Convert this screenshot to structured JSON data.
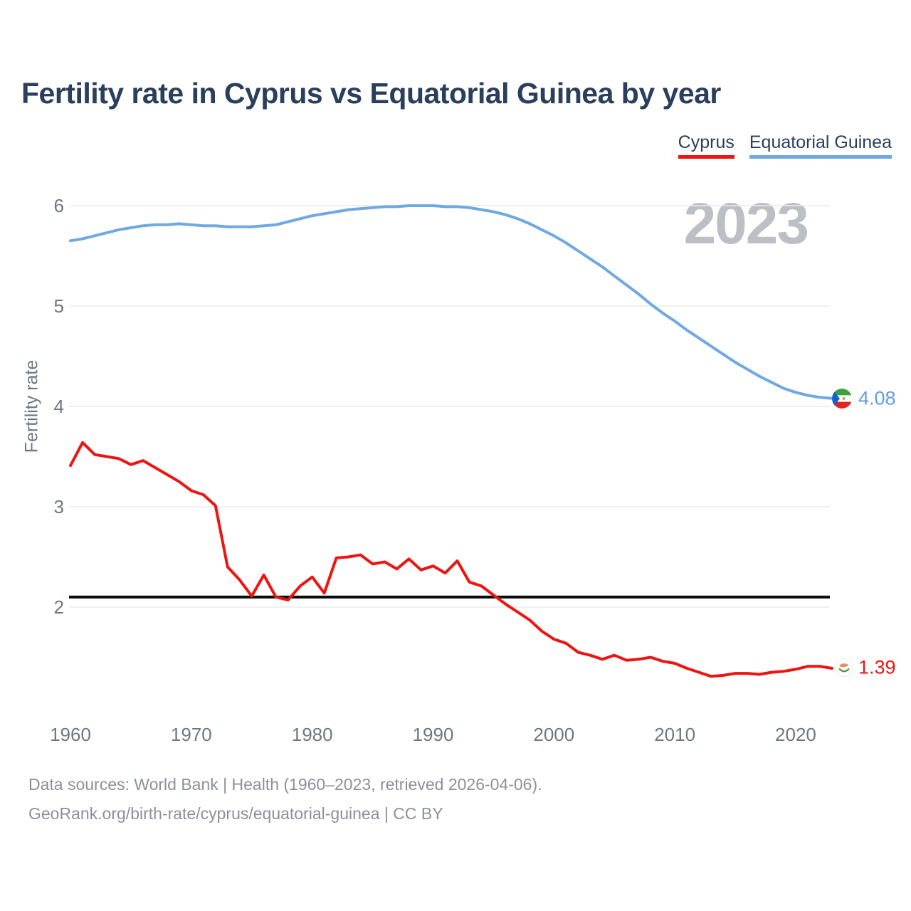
{
  "header": {
    "title": "Fertility rate in Cyprus vs Equatorial Guinea by year"
  },
  "legend": {
    "items": [
      {
        "label": "Cyprus",
        "color": "#ee1411"
      },
      {
        "label": "Equatorial Guinea",
        "color": "#70a9e2"
      }
    ]
  },
  "chart_data": {
    "type": "line",
    "title": "Fertility rate in Cyprus vs Equatorial Guinea by year",
    "xlabel": "",
    "ylabel": "Fertility rate",
    "year_label": "2023",
    "x_range": [
      1960,
      2023
    ],
    "xticks": [
      1960,
      1970,
      1980,
      1990,
      2000,
      2010,
      2020
    ],
    "yticks": [
      2,
      3,
      4,
      5,
      6
    ],
    "ylim": [
      1.2,
      6.3
    ],
    "grid": true,
    "legend_position": "top-right",
    "reference_line": 2.1,
    "series": [
      {
        "name": "Cyprus",
        "color": "#ee1411",
        "end_label": "1.39",
        "end_value": 1.39,
        "values": [
          3.41,
          3.64,
          3.52,
          3.5,
          3.48,
          3.42,
          3.46,
          3.39,
          3.32,
          3.25,
          3.16,
          3.12,
          3.01,
          2.4,
          2.27,
          2.11,
          2.32,
          2.1,
          2.07,
          2.21,
          2.3,
          2.14,
          2.49,
          2.5,
          2.52,
          2.43,
          2.45,
          2.38,
          2.48,
          2.37,
          2.41,
          2.34,
          2.46,
          2.25,
          2.21,
          2.12,
          2.03,
          1.95,
          1.87,
          1.76,
          1.68,
          1.64,
          1.55,
          1.52,
          1.48,
          1.52,
          1.47,
          1.48,
          1.5,
          1.46,
          1.44,
          1.39,
          1.35,
          1.31,
          1.32,
          1.34,
          1.34,
          1.33,
          1.35,
          1.36,
          1.38,
          1.41,
          1.41,
          1.39
        ]
      },
      {
        "name": "Equatorial Guinea",
        "color": "#70a9e2",
        "end_label": "4.08",
        "end_value": 4.08,
        "values": [
          5.65,
          5.67,
          5.7,
          5.73,
          5.76,
          5.78,
          5.8,
          5.81,
          5.81,
          5.82,
          5.81,
          5.8,
          5.8,
          5.79,
          5.79,
          5.79,
          5.8,
          5.81,
          5.84,
          5.87,
          5.9,
          5.92,
          5.94,
          5.96,
          5.97,
          5.98,
          5.99,
          5.99,
          6.0,
          6.0,
          6.0,
          5.99,
          5.99,
          5.98,
          5.96,
          5.94,
          5.91,
          5.87,
          5.82,
          5.76,
          5.7,
          5.63,
          5.55,
          5.47,
          5.39,
          5.3,
          5.21,
          5.12,
          5.02,
          4.93,
          4.85,
          4.76,
          4.68,
          4.6,
          4.52,
          4.44,
          4.37,
          4.3,
          4.24,
          4.18,
          4.14,
          4.11,
          4.09,
          4.08
        ]
      }
    ]
  },
  "footer": {
    "line1": "Data sources: World Bank | Health (1960–2023, retrieved 2026-04-06).",
    "line2": "GeoRank.org/birth-rate/cyprus/equatorial-guinea | CC BY"
  },
  "colors": {
    "title": "#2a3f5c",
    "tick": "#6e7780",
    "gridline": "#eaebec",
    "watermark": "#bcc0c4",
    "reference_line": "#0b0b0b",
    "footer": "#8b9197"
  }
}
